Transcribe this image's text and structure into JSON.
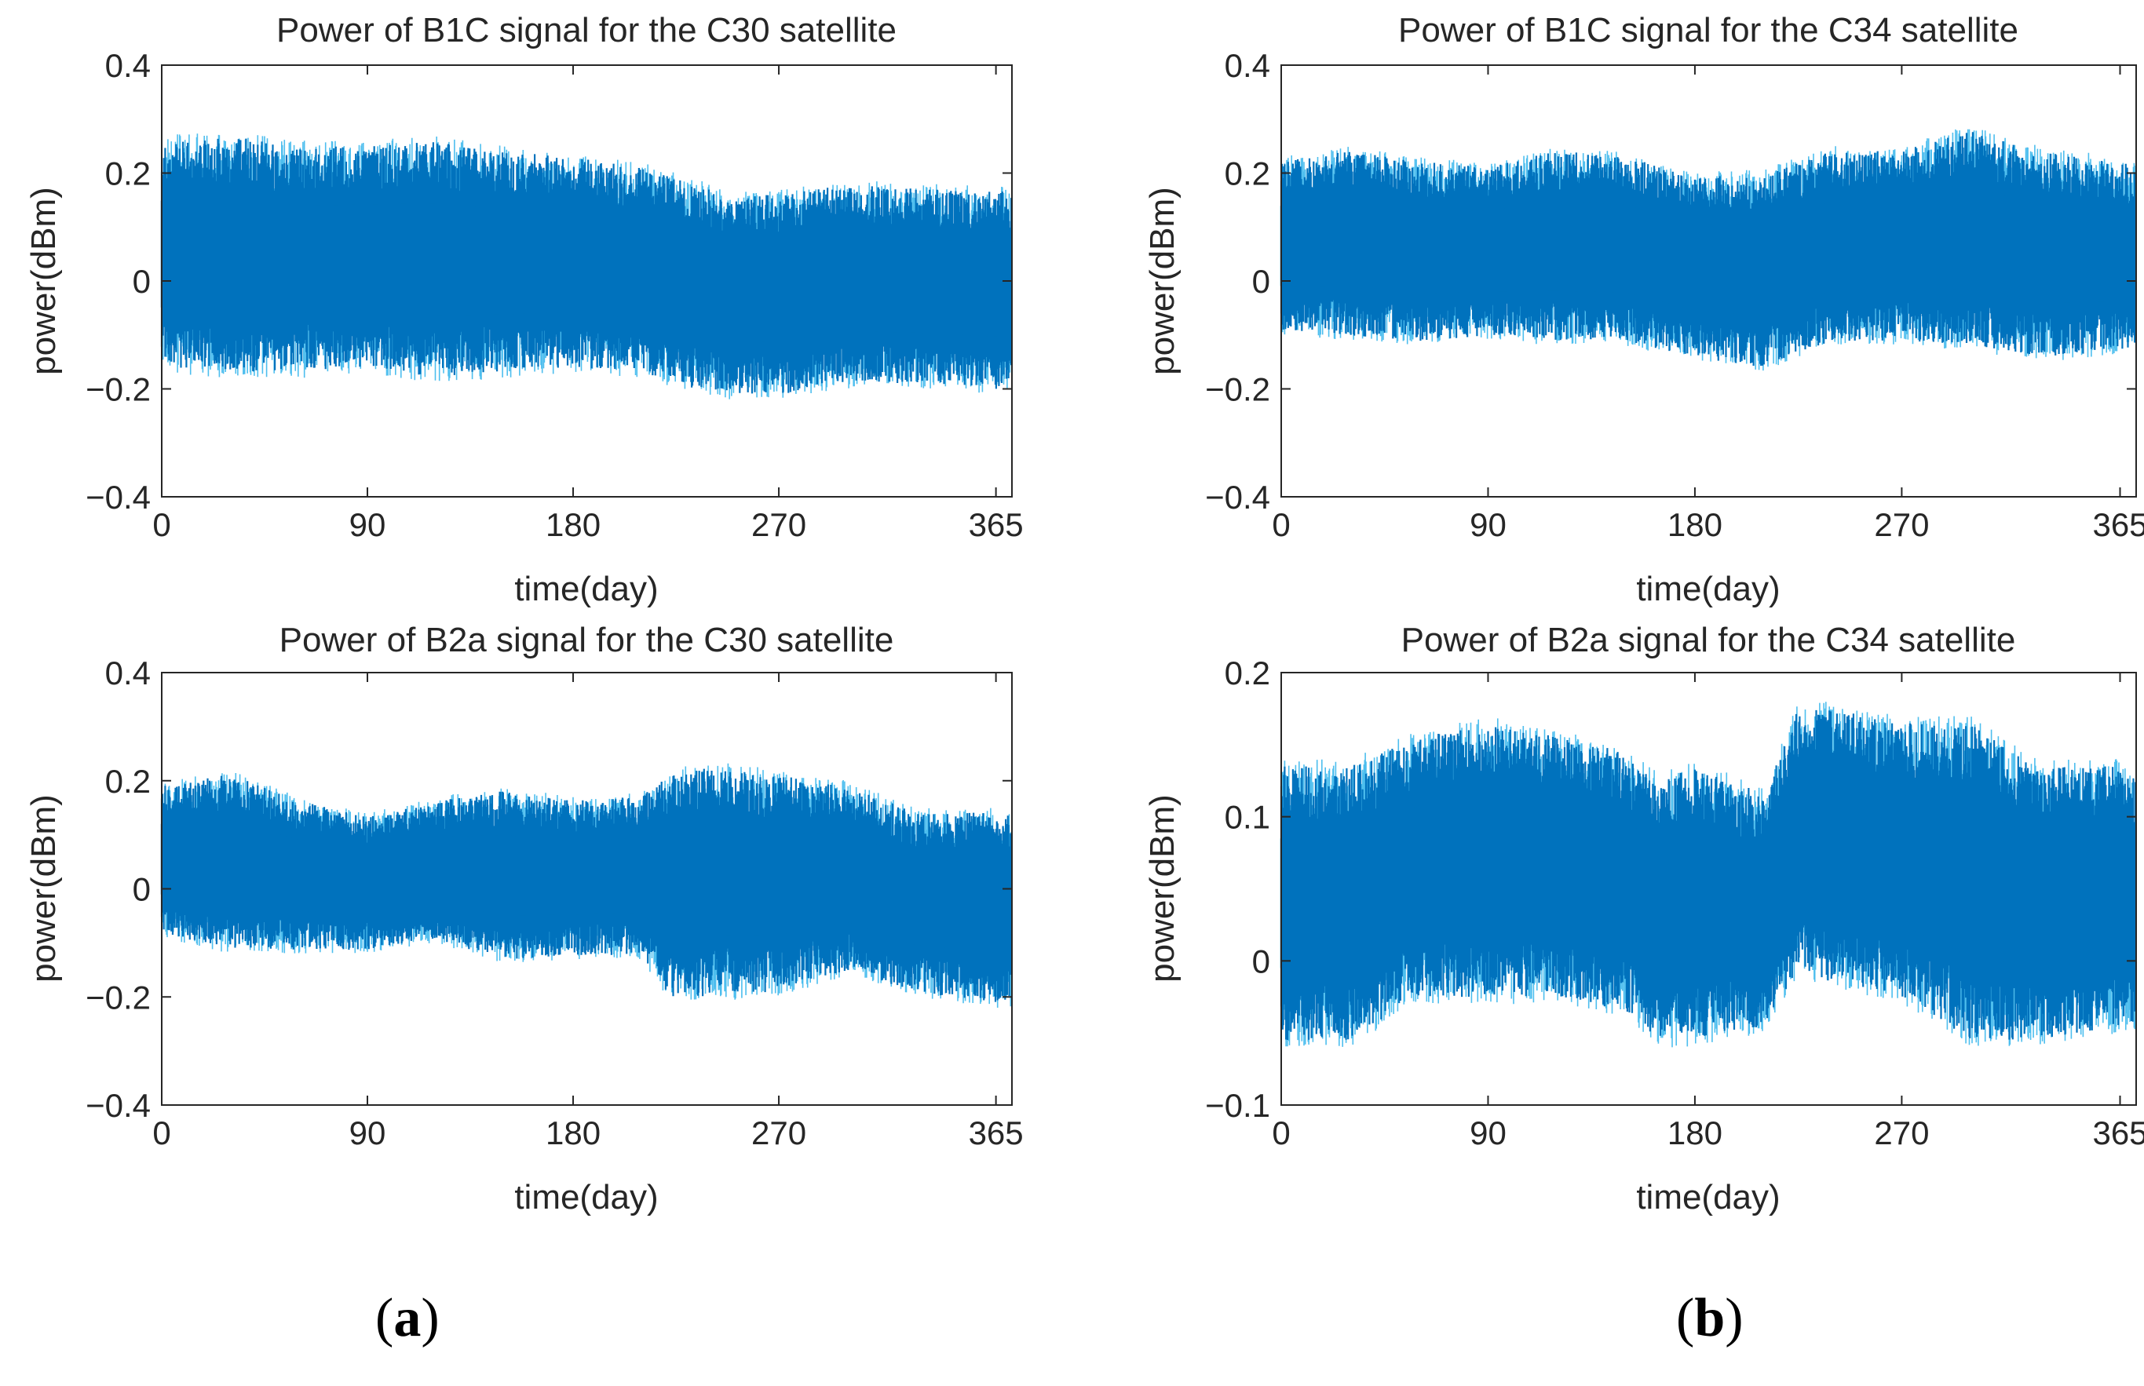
{
  "panel_labels": {
    "a": "a",
    "b": "b"
  },
  "colors": {
    "signal": "#0072BD",
    "signal_light": "#4DBEEE",
    "axis": "#262626"
  },
  "chart_data": [
    {
      "type": "line",
      "title": "Power of B1C signal for the C30 satellite",
      "xlabel": "time(day)",
      "ylabel": "power(dBm)",
      "xlim": [
        0,
        372
      ],
      "ylim": [
        -0.4,
        0.4
      ],
      "xticks": [
        0,
        90,
        180,
        270,
        365
      ],
      "xtick_labels": [
        "0",
        "90",
        "180",
        "270",
        "365"
      ],
      "yticks": [
        -0.4,
        -0.2,
        0,
        0.2,
        0.4
      ],
      "ytick_labels": [
        "−0.4",
        "−0.2",
        "0",
        "0.2",
        "0.4"
      ],
      "series": [
        {
          "name": "B1C C30",
          "x": [
            0,
            30,
            60,
            90,
            120,
            150,
            180,
            210,
            240,
            270,
            300,
            330,
            365,
            372
          ],
          "upper": [
            0.27,
            0.28,
            0.26,
            0.26,
            0.27,
            0.25,
            0.24,
            0.22,
            0.18,
            0.17,
            0.19,
            0.18,
            0.18,
            0.17
          ],
          "lower": [
            -0.17,
            -0.18,
            -0.18,
            -0.17,
            -0.19,
            -0.18,
            -0.17,
            -0.18,
            -0.22,
            -0.22,
            -0.2,
            -0.2,
            -0.21,
            -0.2
          ]
        }
      ]
    },
    {
      "type": "line",
      "title": "Power of B1C signal for the C34 satellite",
      "xlabel": "time(day)",
      "ylabel": "power(dBm)",
      "xlim": [
        0,
        372
      ],
      "ylim": [
        -0.4,
        0.4
      ],
      "xticks": [
        0,
        90,
        180,
        270,
        365
      ],
      "xtick_labels": [
        "0",
        "90",
        "180",
        "270",
        "365"
      ],
      "yticks": [
        -0.4,
        -0.2,
        0,
        0.2,
        0.4
      ],
      "ytick_labels": [
        "−0.4",
        "−0.2",
        "0",
        "0.2",
        "0.4"
      ],
      "series": [
        {
          "name": "B1C C34",
          "x": [
            0,
            30,
            60,
            90,
            120,
            150,
            180,
            210,
            240,
            270,
            300,
            330,
            365,
            372
          ],
          "upper": [
            0.23,
            0.25,
            0.23,
            0.22,
            0.25,
            0.24,
            0.2,
            0.21,
            0.25,
            0.25,
            0.29,
            0.25,
            0.23,
            0.22
          ],
          "lower": [
            -0.1,
            -0.11,
            -0.12,
            -0.11,
            -0.12,
            -0.12,
            -0.15,
            -0.17,
            -0.12,
            -0.12,
            -0.13,
            -0.15,
            -0.14,
            -0.13
          ]
        }
      ]
    },
    {
      "type": "line",
      "title": "Power of B2a signal for the C30 satellite",
      "xlabel": "time(day)",
      "ylabel": "power(dBm)",
      "xlim": [
        0,
        372
      ],
      "ylim": [
        -0.4,
        0.4
      ],
      "xticks": [
        0,
        90,
        180,
        270,
        365
      ],
      "xtick_labels": [
        "0",
        "90",
        "180",
        "270",
        "365"
      ],
      "yticks": [
        -0.4,
        -0.2,
        0,
        0.2,
        0.4
      ],
      "ytick_labels": [
        "−0.4",
        "−0.2",
        "0",
        "0.2",
        "0.4"
      ],
      "series": [
        {
          "name": "B2a C30",
          "x": [
            0,
            30,
            60,
            90,
            120,
            150,
            180,
            210,
            222,
            240,
            270,
            300,
            330,
            365,
            372
          ],
          "upper": [
            0.2,
            0.22,
            0.17,
            0.14,
            0.17,
            0.19,
            0.17,
            0.18,
            0.22,
            0.24,
            0.22,
            0.2,
            0.15,
            0.15,
            0.15
          ],
          "lower": [
            -0.09,
            -0.12,
            -0.12,
            -0.12,
            -0.1,
            -0.14,
            -0.13,
            -0.13,
            -0.21,
            -0.21,
            -0.2,
            -0.16,
            -0.2,
            -0.22,
            -0.22
          ]
        }
      ]
    },
    {
      "type": "line",
      "title": "Power of B2a signal for the C34 satellite",
      "xlabel": "time(day)",
      "ylabel": "power(dBm)",
      "xlim": [
        0,
        372
      ],
      "ylim": [
        -0.1,
        0.2
      ],
      "xticks": [
        0,
        90,
        180,
        270,
        365
      ],
      "xtick_labels": [
        "0",
        "90",
        "180",
        "270",
        "365"
      ],
      "yticks": [
        -0.1,
        0,
        0.1,
        0.2
      ],
      "ytick_labels": [
        "−0.1",
        "0",
        "0.1",
        "0.2"
      ],
      "series": [
        {
          "name": "B2a C34",
          "x": [
            0,
            30,
            60,
            90,
            120,
            150,
            165,
            180,
            210,
            225,
            240,
            270,
            300,
            330,
            365,
            372
          ],
          "upper": [
            0.14,
            0.14,
            0.16,
            0.17,
            0.16,
            0.15,
            0.13,
            0.14,
            0.12,
            0.18,
            0.18,
            0.17,
            0.17,
            0.14,
            0.14,
            0.13
          ],
          "lower": [
            -0.06,
            -0.06,
            -0.03,
            -0.03,
            -0.03,
            -0.04,
            -0.06,
            -0.06,
            -0.05,
            -0.01,
            -0.02,
            -0.03,
            -0.06,
            -0.06,
            -0.05,
            -0.05
          ]
        }
      ]
    }
  ]
}
